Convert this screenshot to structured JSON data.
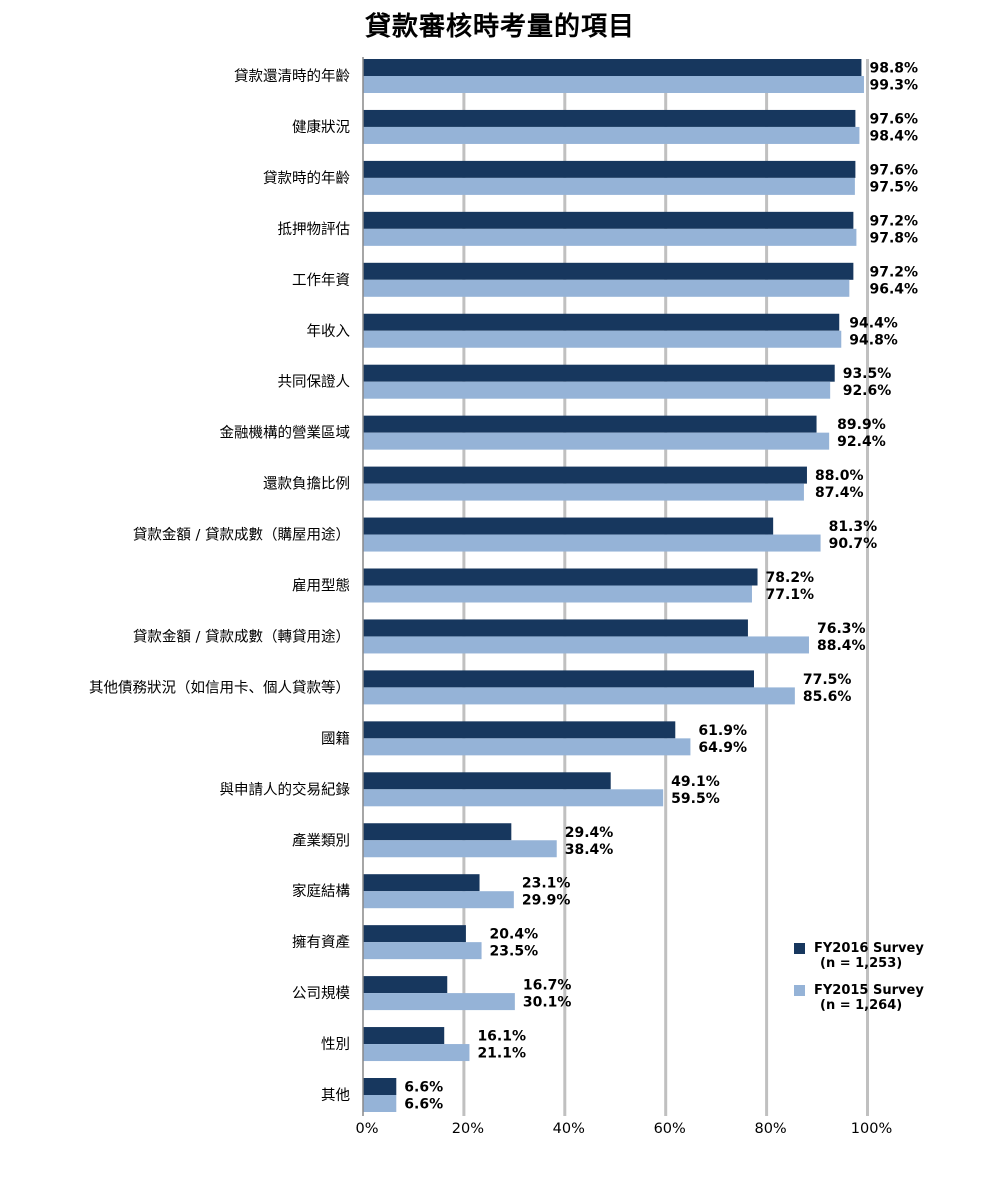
{
  "chart_data": {
    "type": "bar",
    "orientation": "horizontal",
    "title": "貸款審核時考量的項目",
    "categories": [
      "貸款還清時的年齡",
      "健康狀況",
      "貸款時的年齡",
      "抵押物評估",
      "工作年資",
      "年收入",
      "共同保證人",
      "金融機構的營業區域",
      "還款負擔比例",
      "貸款金額 / 貸款成數（購屋用途）",
      "雇用型態",
      "貸款金額 / 貸款成數（轉貸用途）",
      "其他債務狀況（如信用卡、個人貸款等）",
      "國籍",
      "與申請人的交易紀錄",
      "產業類別",
      "家庭結構",
      "擁有資產",
      "公司規模",
      "性別",
      "其他"
    ],
    "series": [
      {
        "name": "FY2016 Survey",
        "sample": "(n = 1,253)",
        "color": "#17375e",
        "values": [
          98.8,
          97.6,
          97.6,
          97.2,
          97.2,
          94.4,
          93.5,
          89.9,
          88.0,
          81.3,
          78.2,
          76.3,
          77.5,
          61.9,
          49.1,
          29.4,
          23.1,
          20.4,
          16.7,
          16.1,
          6.6
        ],
        "labels": [
          "98.8%",
          "97.6%",
          "97.6%",
          "97.2%",
          "97.2%",
          "94.4%",
          "93.5%",
          "89.9%",
          "88.0%",
          "81.3%",
          "78.2%",
          "76.3%",
          "77.5%",
          "61.9%",
          "49.1%",
          "29.4%",
          "23.1%",
          "20.4%",
          "16.7%",
          "16.1%",
          "6.6%"
        ]
      },
      {
        "name": "FY2015 Survey",
        "sample": "(n = 1,264)",
        "color": "#95b3d7",
        "values": [
          99.3,
          98.4,
          97.5,
          97.8,
          96.4,
          94.8,
          92.6,
          92.4,
          87.4,
          90.7,
          77.1,
          88.4,
          85.6,
          64.9,
          59.5,
          38.4,
          29.9,
          23.5,
          30.1,
          21.1,
          6.6
        ],
        "labels": [
          "99.3%",
          "98.4%",
          "97.5%",
          "97.8%",
          "96.4%",
          "94.8%",
          "92.6%",
          "92.4%",
          "87.4%",
          "90.7%",
          "77.1%",
          "88.4%",
          "85.6%",
          "64.9%",
          "59.5%",
          "38.4%",
          "29.9%",
          "23.5%",
          "30.1%",
          "21.1%",
          "6.6%"
        ]
      }
    ],
    "xlim": [
      0,
      100
    ],
    "x_ticks": [
      "0%",
      "20%",
      "40%",
      "60%",
      "80%",
      "100%"
    ],
    "grid": "vertical",
    "gridline_color": "#c0c0c0",
    "legend_position": "bottom-right"
  }
}
